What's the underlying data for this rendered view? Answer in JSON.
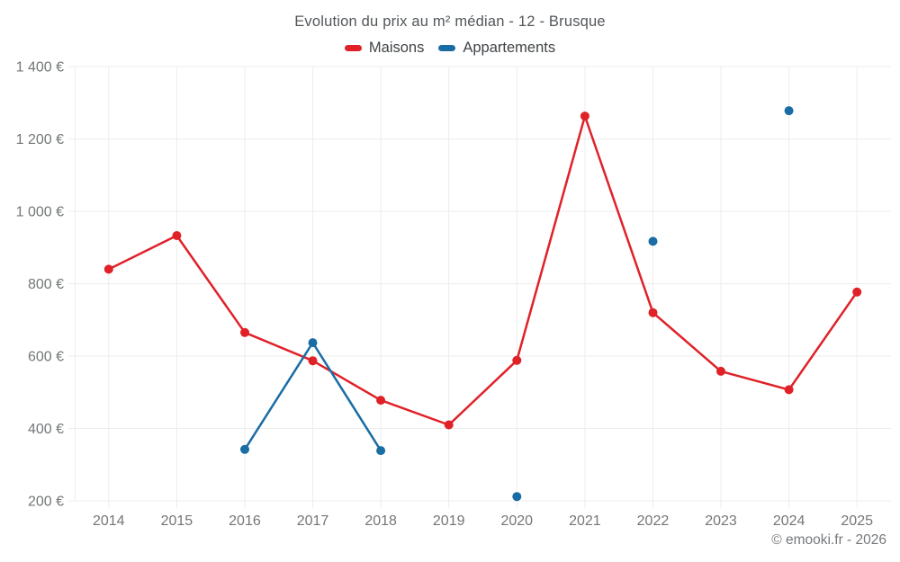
{
  "header": {
    "title": "Evolution du prix au m² médian - 12 - Brusque"
  },
  "legend": [
    {
      "label": "Maisons",
      "color": "#e02128"
    },
    {
      "label": "Appartements",
      "color": "#1a6ca4"
    }
  ],
  "footer": {
    "credit": "© emooki.fr - 2026"
  },
  "chart_data": {
    "type": "line",
    "title": "Evolution du prix au m² médian - 12 - Brusque",
    "x": [
      "2014",
      "2015",
      "2016",
      "2017",
      "2018",
      "2019",
      "2020",
      "2021",
      "2022",
      "2023",
      "2024",
      "2025"
    ],
    "series": [
      {
        "name": "Maisons",
        "color": "#e02128",
        "values": [
          840,
          933,
          665,
          587,
          478,
          410,
          588,
          1263,
          720,
          558,
          507,
          777
        ]
      },
      {
        "name": "Appartements",
        "color": "#1a6ca4",
        "values": [
          null,
          null,
          342,
          637,
          339,
          null,
          212,
          null,
          917,
          null,
          1278,
          null
        ]
      }
    ],
    "ylim": [
      200,
      1400
    ],
    "ytick_step": 200,
    "ytick_labels": [
      "200 €",
      "400 €",
      "600 €",
      "800 €",
      "1 000 €",
      "1 200 €",
      "1 400 €"
    ],
    "grid": true,
    "legend_position": "top",
    "grid_color": "#ededed",
    "marker_radius": 5,
    "line_width": 2.5
  }
}
